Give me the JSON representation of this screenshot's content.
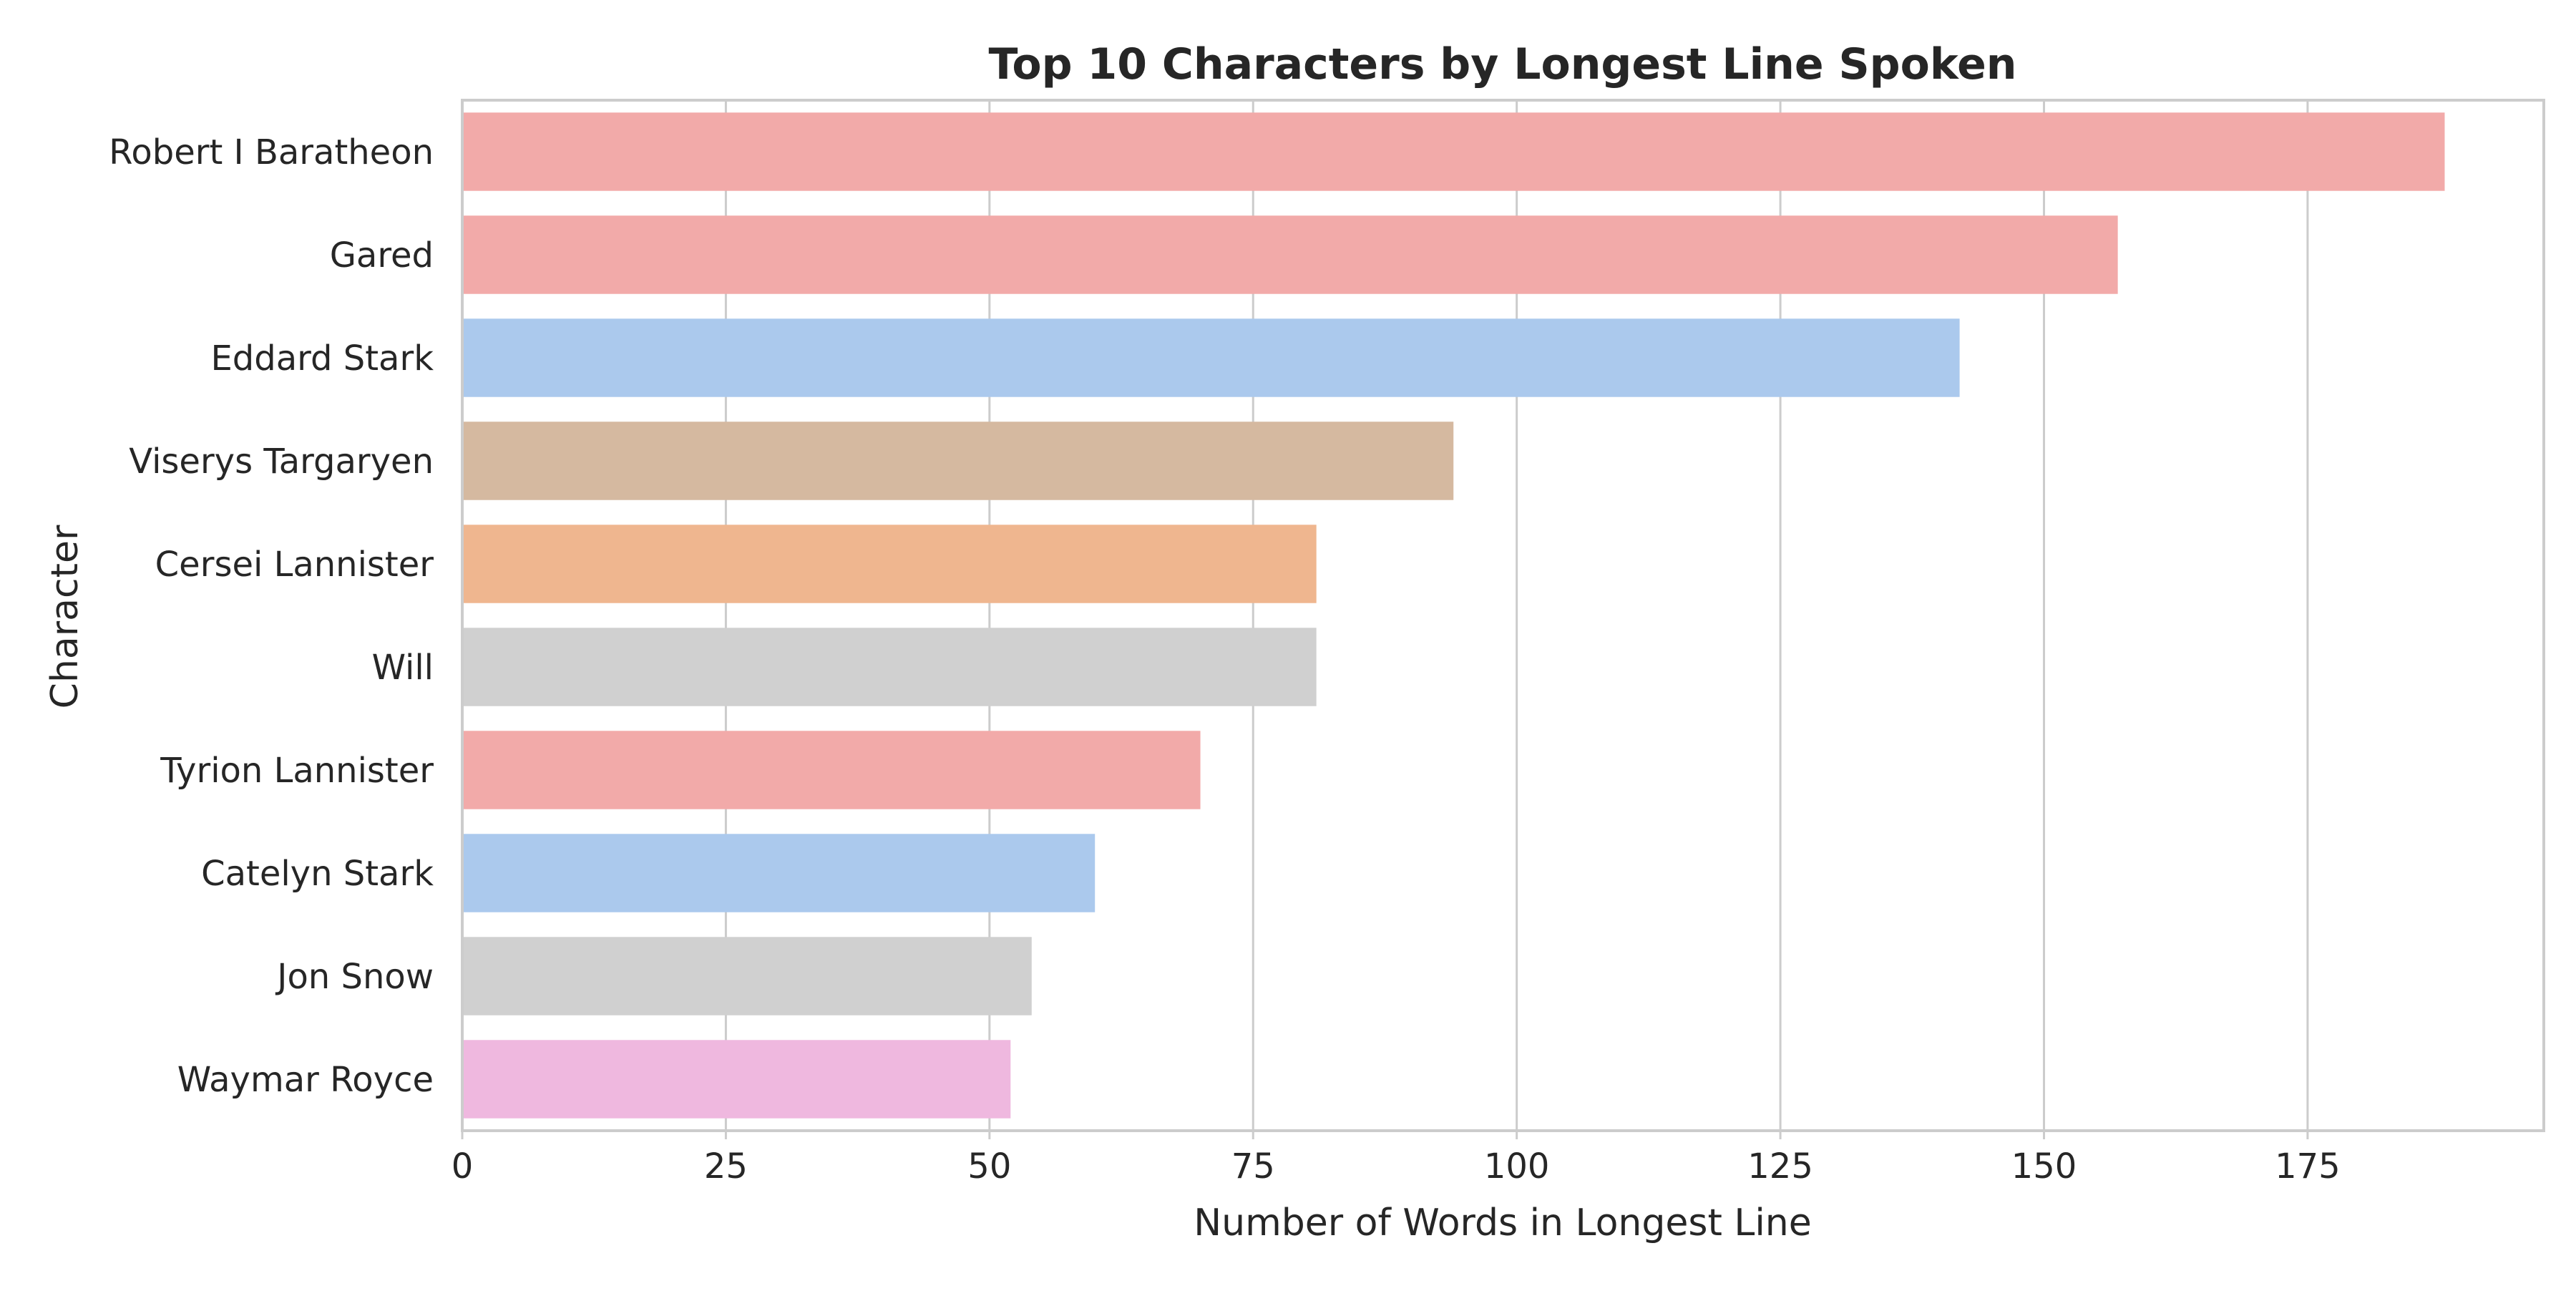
{
  "chart_data": {
    "type": "bar",
    "orientation": "horizontal",
    "title": "Top 10 Characters by Longest Line Spoken",
    "xlabel": "Number of Words in Longest Line",
    "ylabel": "Character",
    "categories": [
      "Robert I Baratheon",
      "Gared",
      "Eddard Stark",
      "Viserys Targaryen",
      "Cersei Lannister",
      "Will",
      "Tyrion Lannister",
      "Catelyn Stark",
      "Jon Snow",
      "Waymar Royce"
    ],
    "values": [
      188,
      157,
      142,
      94,
      81,
      81,
      70,
      60,
      54,
      52
    ],
    "bar_colors": [
      "#f2aaa9",
      "#f2aaa9",
      "#abc9ed",
      "#d5b9a0",
      "#efb68f",
      "#d0d0d0",
      "#f2aaa9",
      "#abc9ed",
      "#d0d0d0",
      "#efb8df"
    ],
    "xlim": [
      0,
      197.4
    ],
    "xticks": [
      0,
      25,
      50,
      75,
      100,
      125,
      150,
      175
    ],
    "grid": true,
    "grid_color": "#cccccc",
    "spine_color": "#cccccc",
    "background": "#ffffff"
  }
}
